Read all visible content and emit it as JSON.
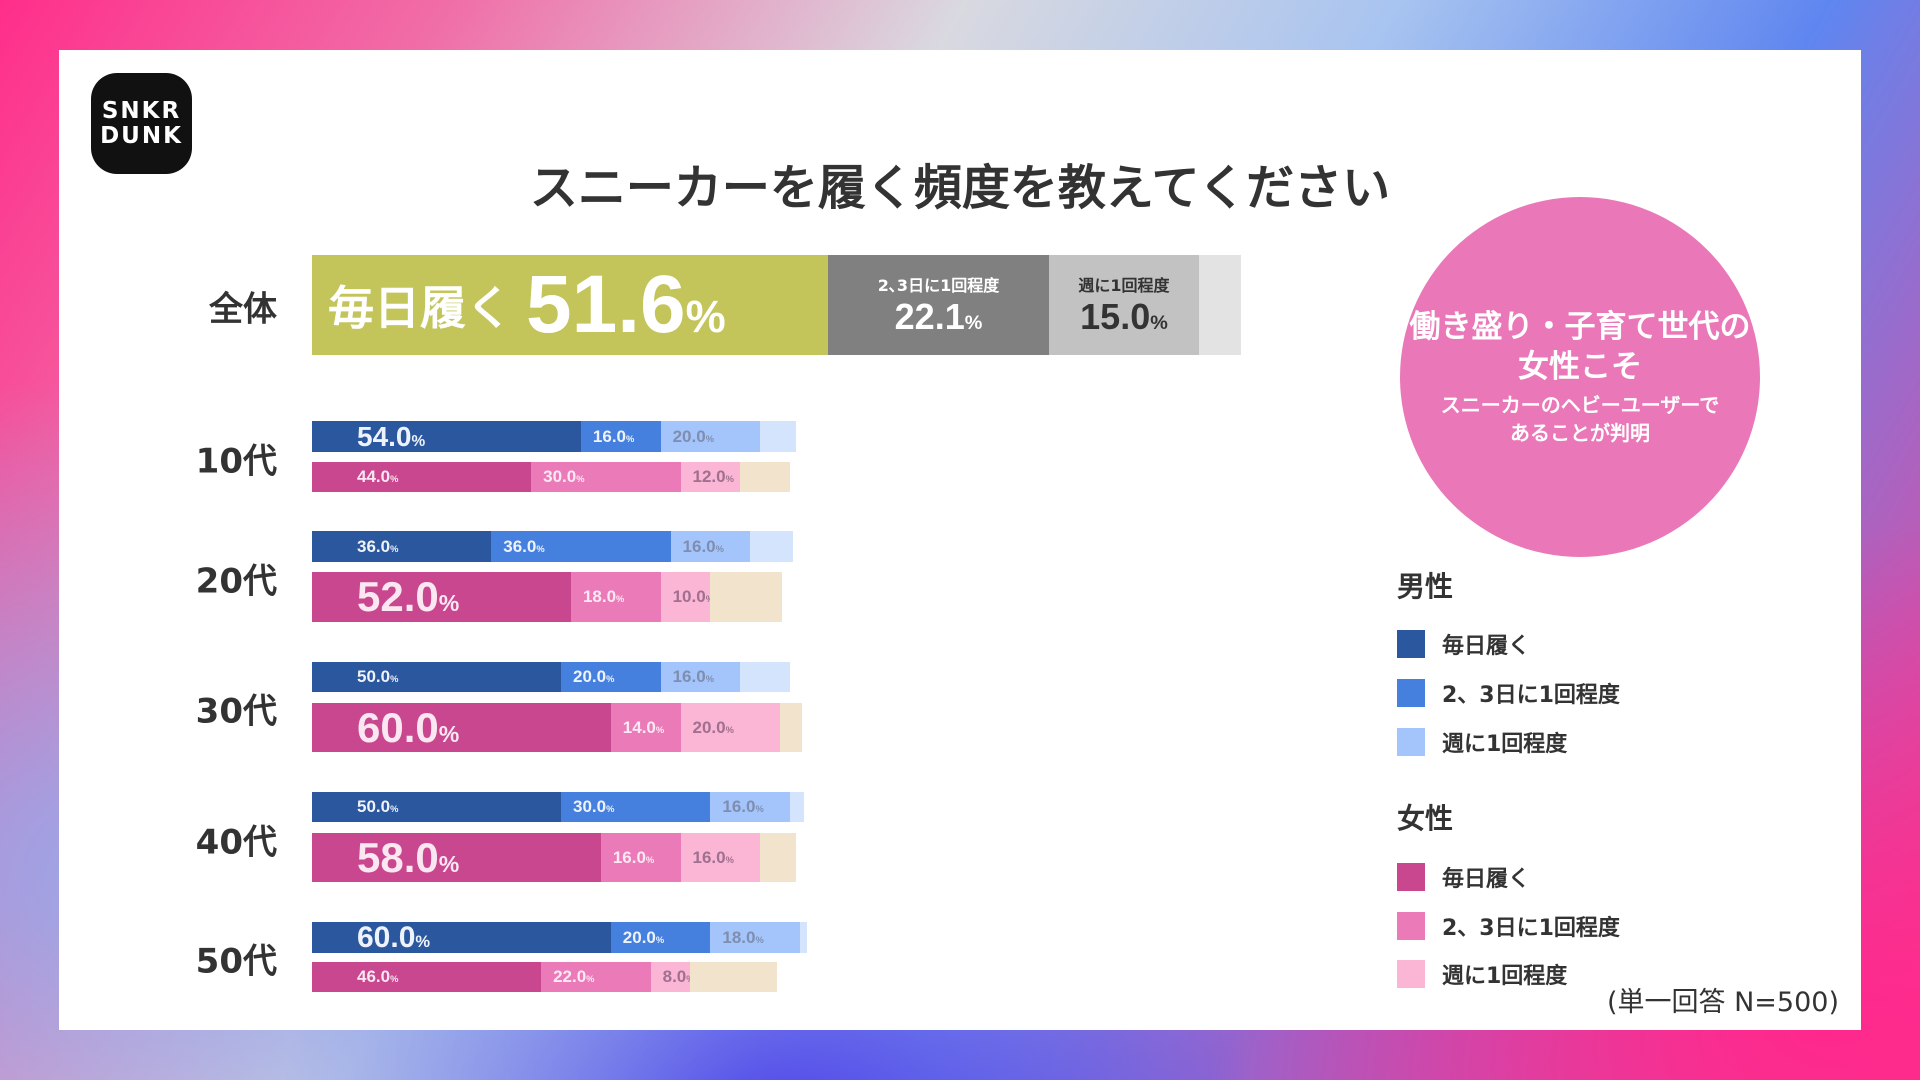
{
  "logo": {
    "line1": "SNKR",
    "line2": "DUNK"
  },
  "chart_data": {
    "type": "bar",
    "orientation": "horizontal",
    "stacked": true,
    "title": "スニーカーを履く頻度を教えてください",
    "overall": {
      "label": "全体",
      "segments": [
        {
          "name": "毎日履く",
          "value": 51.6,
          "color": "#c3c45a"
        },
        {
          "name": "2､3日に1回程度",
          "value": 22.1,
          "color": "#808080"
        },
        {
          "name": "週に1回程度",
          "value": 15.0,
          "color": "#c2c2c2"
        }
      ],
      "other_color": "#e3e3e3"
    },
    "categories": [
      "10代",
      "20代",
      "30代",
      "40代",
      "50代"
    ],
    "series_names": [
      "毎日履く",
      "2、3日に1回程度",
      "週に1回程度"
    ],
    "groups": [
      {
        "name": "男性",
        "colors": [
          "#2b579e",
          "#4580df",
          "#a3c5fb"
        ],
        "other_color": "#d5e4fd",
        "values": [
          [
            54.0,
            16.0,
            20.0
          ],
          [
            36.0,
            36.0,
            16.0
          ],
          [
            50.0,
            20.0,
            16.0
          ],
          [
            50.0,
            30.0,
            16.0
          ],
          [
            60.0,
            20.0,
            18.0
          ]
        ]
      },
      {
        "name": "女性",
        "colors": [
          "#c8478f",
          "#eb7bb8",
          "#fbb5d5"
        ],
        "other_color": "#f2e3cd",
        "values": [
          [
            44.0,
            30.0,
            12.0
          ],
          [
            52.0,
            18.0,
            10.0
          ],
          [
            60.0,
            14.0,
            20.0
          ],
          [
            58.0,
            16.0,
            16.0
          ],
          [
            46.0,
            22.0,
            8.0
          ]
        ]
      }
    ],
    "legend_placement": "right"
  },
  "callout": {
    "line1": "働き盛り・子育て世代の",
    "line2": "女性こそ",
    "line3": "スニーカーのヘビーユーザーで",
    "line4": "あることが判明"
  },
  "legend": {
    "male": {
      "title": "男性",
      "items": [
        "毎日履く",
        "2、3日に1回程度",
        "週に1回程度"
      ]
    },
    "female": {
      "title": "女性",
      "items": [
        "毎日履く",
        "2、3日に1回程度",
        "週に1回程度"
      ]
    }
  },
  "note": "(単一回答 N=500)"
}
